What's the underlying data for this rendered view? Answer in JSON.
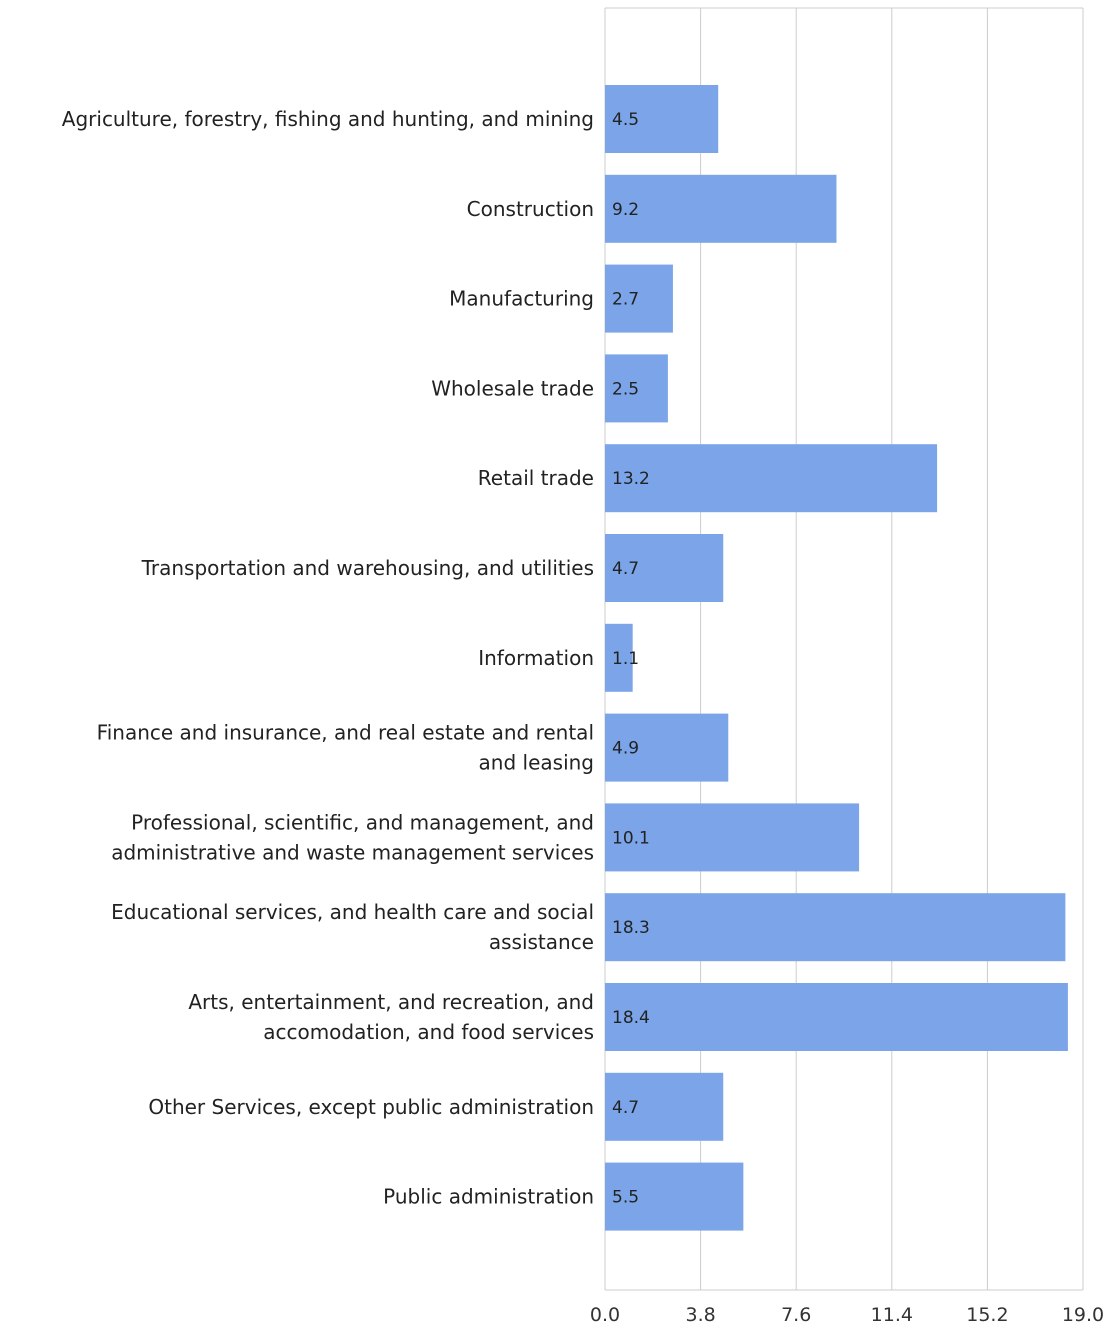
{
  "chart_data": {
    "type": "bar",
    "orientation": "horizontal",
    "categories": [
      [
        "Agriculture, forestry, fishing and hunting, and mining"
      ],
      [
        "Construction"
      ],
      [
        "Manufacturing"
      ],
      [
        "Wholesale trade"
      ],
      [
        "Retail trade"
      ],
      [
        "Transportation and warehousing, and utilities"
      ],
      [
        "Information"
      ],
      [
        "Finance and insurance, and real estate and rental",
        "and leasing"
      ],
      [
        "Professional, scientific, and management, and",
        "administrative and waste management services"
      ],
      [
        "Educational services, and health care and social",
        "assistance"
      ],
      [
        "Arts, entertainment, and recreation, and",
        "accomodation, and food services"
      ],
      [
        "Other Services, except public administration"
      ],
      [
        "Public administration"
      ]
    ],
    "values": [
      4.5,
      9.2,
      2.7,
      2.5,
      13.2,
      4.7,
      1.1,
      4.9,
      10.1,
      18.3,
      18.4,
      4.7,
      5.5
    ],
    "value_labels": [
      "4.5",
      "9.2",
      "2.7",
      "2.5",
      "13.2",
      "4.7",
      "1.1",
      "4.9",
      "10.1",
      "18.3",
      "18.4",
      "4.7",
      "5.5"
    ],
    "xlim": [
      0,
      19.0
    ],
    "ticks": [
      0,
      3.8,
      7.6,
      11.4,
      15.2,
      19.0
    ],
    "tick_labels": [
      "0.0",
      "3.8",
      "7.6",
      "11.4",
      "15.2",
      "19.0"
    ],
    "title": "",
    "xlabel": "",
    "ylabel": "",
    "grid": true,
    "bar_color": "#7ba5e8",
    "grid_color": "#cccccc"
  }
}
